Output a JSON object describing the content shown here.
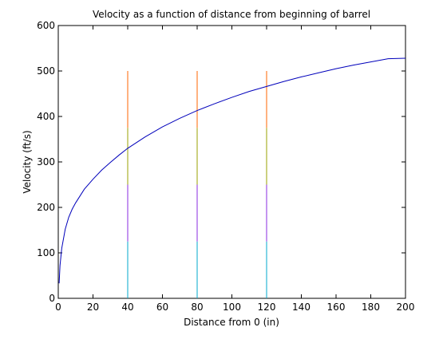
{
  "chart_data": {
    "type": "line",
    "title": "Velocity as a function of distance from beginning of barrel",
    "xlabel": "Distance from 0 (in)",
    "ylabel": "Velocity (ft/s)",
    "xlim": [
      0,
      200
    ],
    "ylim": [
      0,
      600
    ],
    "xticks": [
      0,
      20,
      40,
      60,
      80,
      100,
      120,
      140,
      160,
      180,
      200
    ],
    "yticks": [
      0,
      100,
      200,
      300,
      400,
      500,
      600
    ],
    "grid": false,
    "legend": "none",
    "series": [
      {
        "color": "#0000bb",
        "x": [
          0.5,
          1,
          2,
          4,
          6,
          8,
          10,
          15,
          20,
          25,
          30,
          35,
          40,
          50,
          60,
          70,
          80,
          90,
          100,
          110,
          120,
          130,
          140,
          150,
          160,
          170,
          180,
          190,
          200
        ],
        "y": [
          33,
          72,
          110,
          152,
          178,
          196,
          210,
          240,
          262,
          282,
          299,
          315,
          330,
          355,
          377,
          396,
          413,
          428,
          442,
          455,
          466,
          477,
          487,
          496,
          505,
          513,
          520,
          527,
          528
        ]
      }
    ],
    "vertical_markers": [
      {
        "x": 40,
        "y_range": [
          0,
          500
        ],
        "colors": [
          "#00aacc",
          "#8a2be2",
          "#9aa000",
          "#ff6600"
        ]
      },
      {
        "x": 80,
        "y_range": [
          0,
          500
        ],
        "colors": [
          "#00aacc",
          "#8a2be2",
          "#9aa000",
          "#ff6600"
        ]
      },
      {
        "x": 120,
        "y_range": [
          0,
          500
        ],
        "colors": [
          "#00aacc",
          "#8a2be2",
          "#9aa000",
          "#ff6600"
        ]
      }
    ]
  }
}
